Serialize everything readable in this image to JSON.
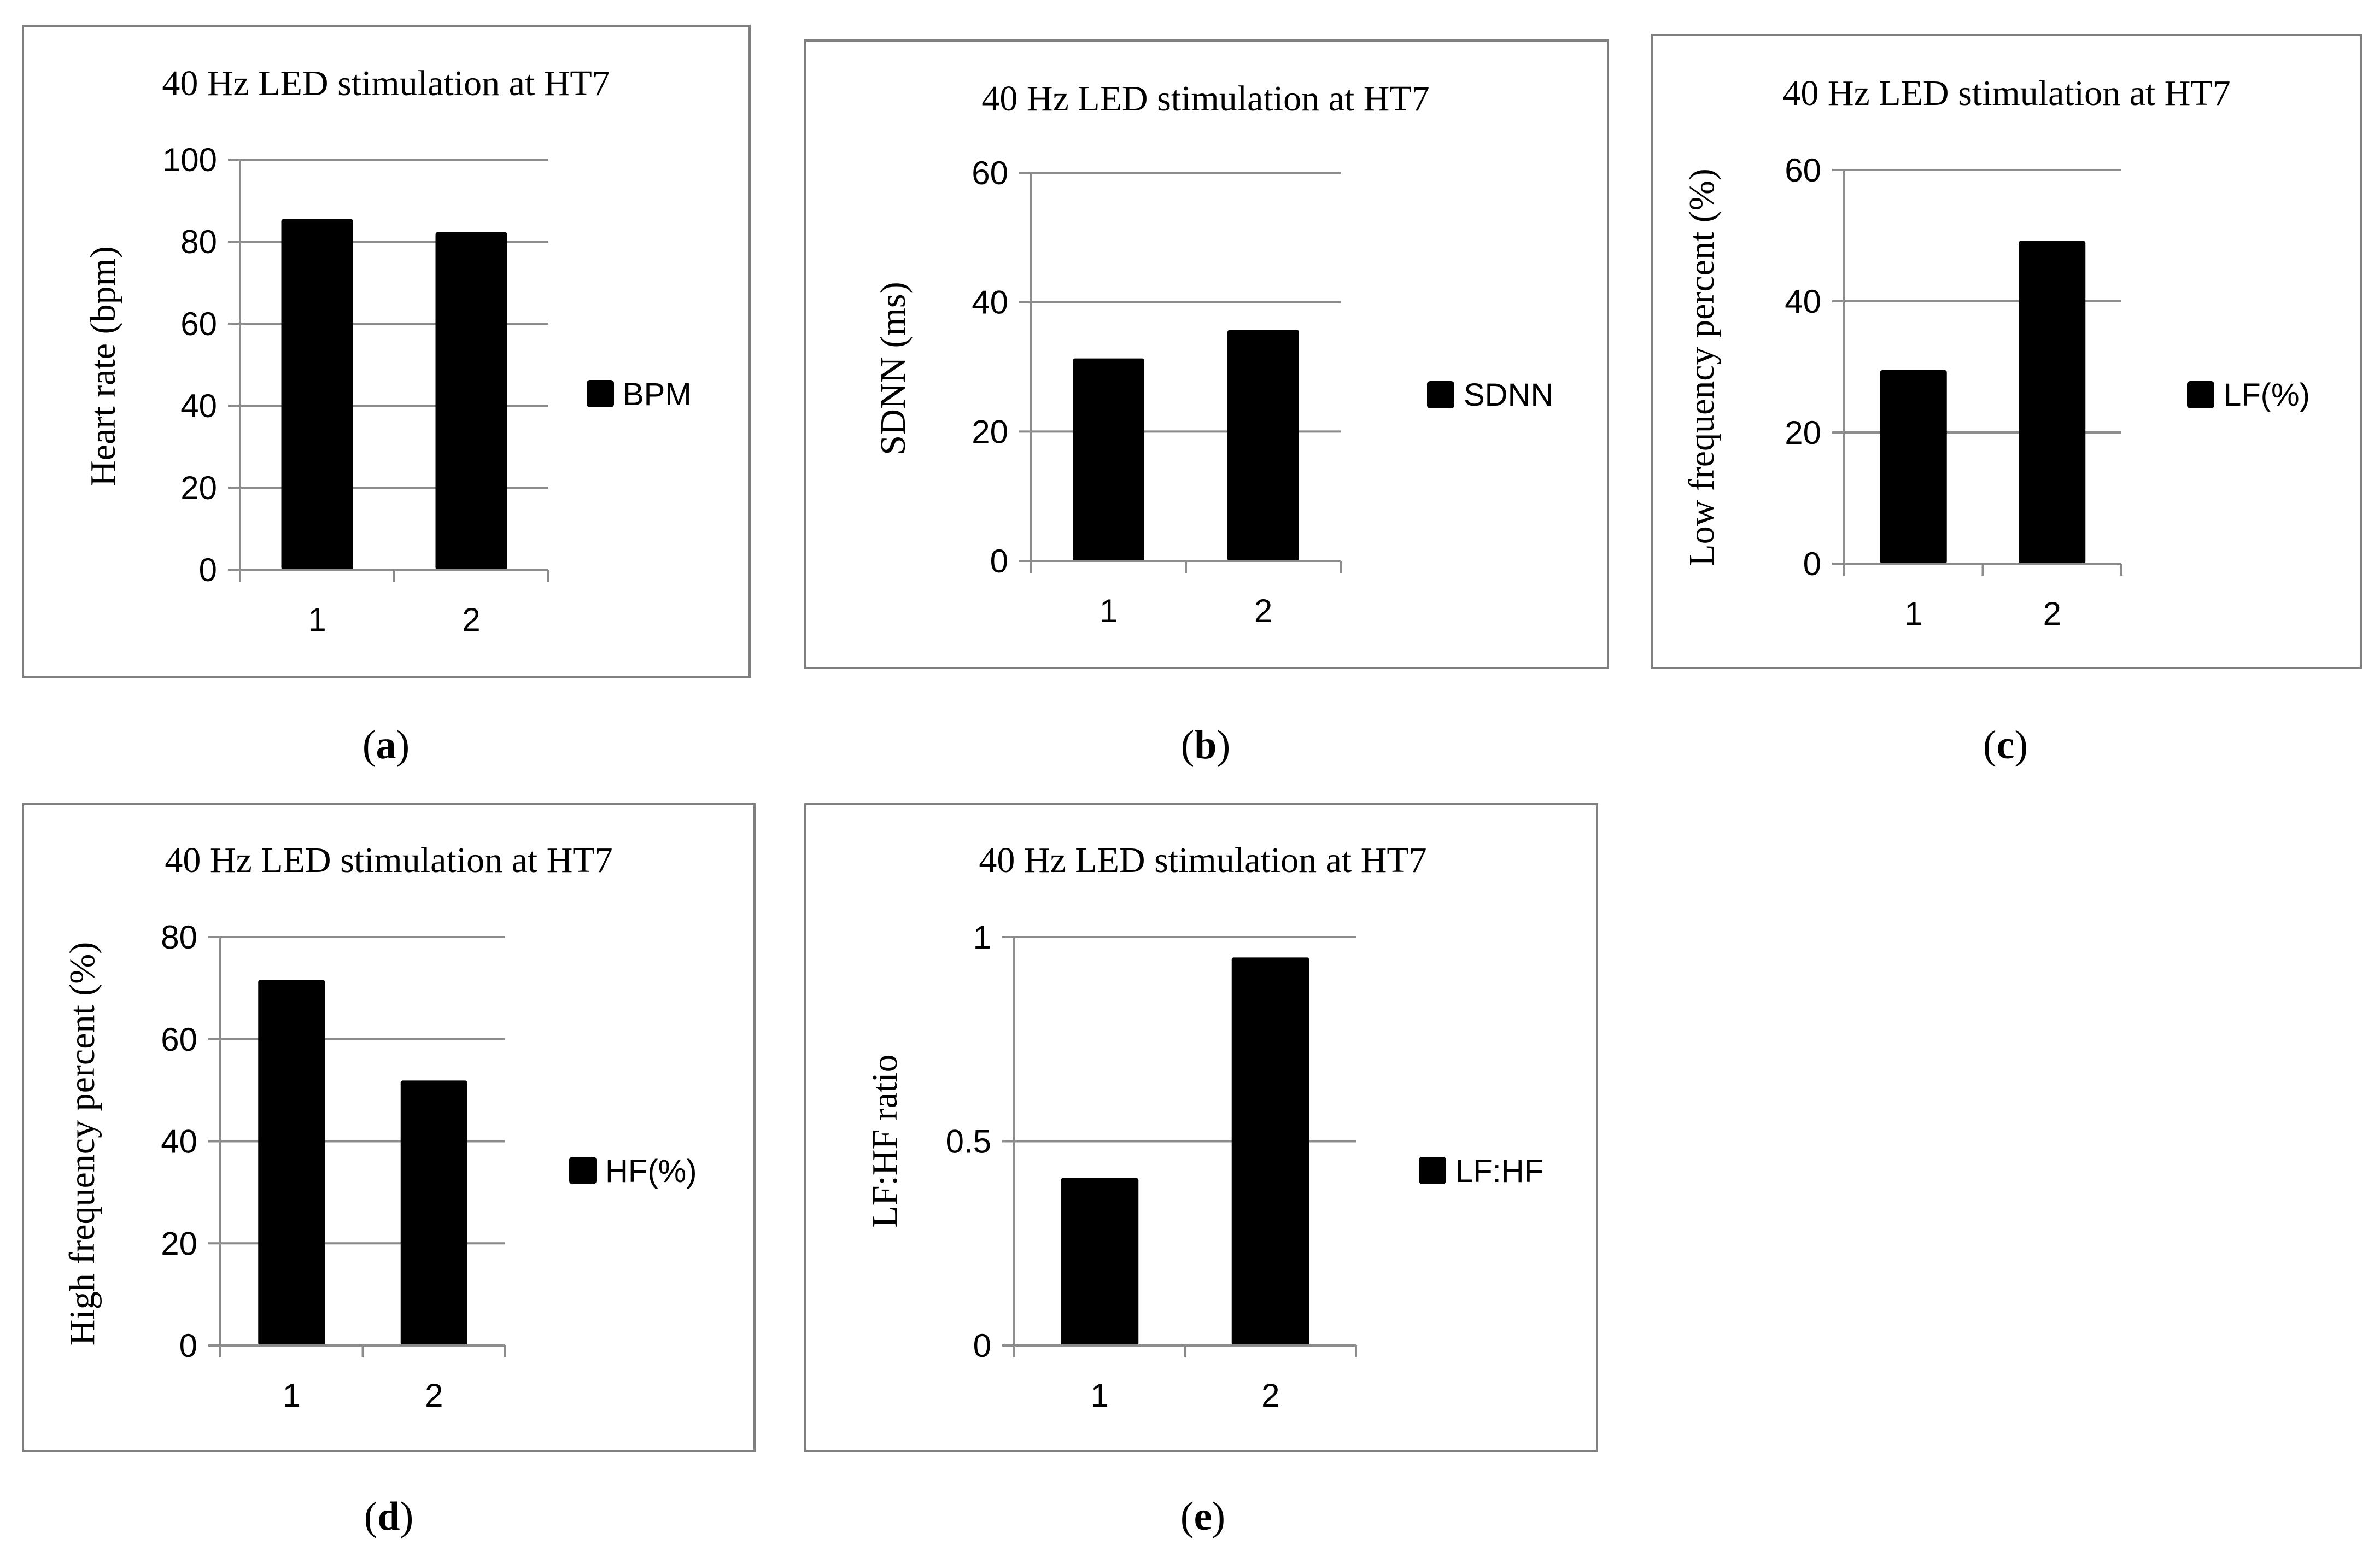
{
  "chart_data": [
    {
      "type": "bar",
      "panel": "a",
      "title": "40 Hz LED stimulation at HT7",
      "xlabel": "",
      "ylabel": "Heart rate (bpm)",
      "categories": [
        "1",
        "2"
      ],
      "series": [
        {
          "name": "BPM",
          "values": [
            85.5,
            82.3
          ]
        }
      ],
      "ylim": [
        0,
        100
      ],
      "yticks": [
        0,
        20,
        40,
        60,
        80,
        100
      ],
      "ytick_labels": [
        "0",
        "20",
        "40",
        "60",
        "80",
        "100"
      ],
      "grid": true,
      "legend": "right",
      "bar_color": "#000000"
    },
    {
      "type": "bar",
      "panel": "b",
      "title": "40 Hz LED stimulation at HT7",
      "xlabel": "",
      "ylabel": "SDNN (ms)",
      "categories": [
        "1",
        "2"
      ],
      "series": [
        {
          "name": "SDNN",
          "values": [
            31.3,
            35.7
          ]
        }
      ],
      "ylim": [
        0,
        60
      ],
      "yticks": [
        0,
        20,
        40,
        60
      ],
      "ytick_labels": [
        "0",
        "20",
        "40",
        "60"
      ],
      "grid": true,
      "legend": "right",
      "bar_color": "#000000"
    },
    {
      "type": "bar",
      "panel": "c",
      "title": "40 Hz LED stimulation at HT7",
      "xlabel": "",
      "ylabel": "Low frequency percent (%)",
      "categories": [
        "1",
        "2"
      ],
      "series": [
        {
          "name": "LF(%)",
          "values": [
            29.5,
            49.2
          ]
        }
      ],
      "ylim": [
        0,
        60
      ],
      "yticks": [
        0,
        20,
        40,
        60
      ],
      "ytick_labels": [
        "0",
        "20",
        "40",
        "60"
      ],
      "grid": true,
      "legend": "right",
      "bar_color": "#000000"
    },
    {
      "type": "bar",
      "panel": "d",
      "title": "40 Hz LED stimulation at HT7",
      "xlabel": "",
      "ylabel": "High frequency percent (%)",
      "categories": [
        "1",
        "2"
      ],
      "series": [
        {
          "name": "HF(%)",
          "values": [
            71.6,
            51.9
          ]
        }
      ],
      "ylim": [
        0,
        80
      ],
      "yticks": [
        0,
        20,
        40,
        60,
        80
      ],
      "ytick_labels": [
        "0",
        "20",
        "40",
        "60",
        "80"
      ],
      "grid": true,
      "legend": "right",
      "bar_color": "#000000"
    },
    {
      "type": "bar",
      "panel": "e",
      "title": "40 Hz LED stimulation at HT7",
      "xlabel": "",
      "ylabel": "LF:HF ratio",
      "categories": [
        "1",
        "2"
      ],
      "series": [
        {
          "name": "LF:HF",
          "values": [
            0.41,
            0.95
          ]
        }
      ],
      "ylim": [
        0,
        1
      ],
      "yticks": [
        0,
        0.5,
        1
      ],
      "ytick_labels": [
        "0",
        "0.5",
        "1"
      ],
      "grid": true,
      "legend": "right",
      "bar_color": "#000000"
    }
  ],
  "captions": [
    {
      "open": "(",
      "letter": "a",
      "close": ")"
    },
    {
      "open": "(",
      "letter": "b",
      "close": ")"
    },
    {
      "open": "(",
      "letter": "c",
      "close": ")"
    },
    {
      "open": "(",
      "letter": "d",
      "close": ")"
    },
    {
      "open": "(",
      "letter": "e",
      "close": ")"
    }
  ]
}
